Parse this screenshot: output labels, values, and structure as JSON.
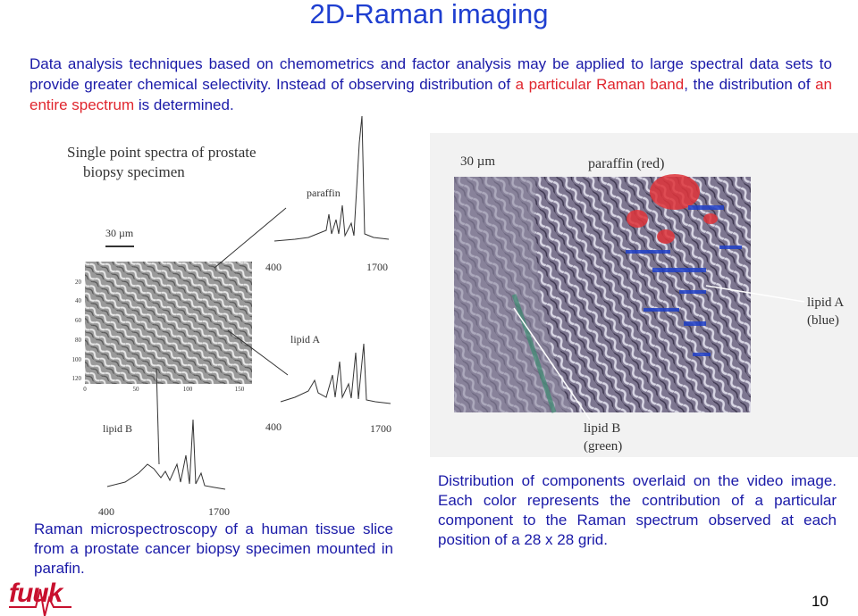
{
  "title": "2D-Raman imaging",
  "intro": {
    "parts": [
      "Data analysis techniques based on chemometrics and factor analysis may be applied to large spectral data sets to provide greater chemical selectivity. Instead of observing distribution of ",
      "a particular Raman band",
      ", the distribution of ",
      "an entire spectrum",
      " is determined."
    ]
  },
  "left_figure": {
    "heading": [
      "Single point spectra of prostate",
      "biopsy specimen"
    ],
    "scale_bar": "30 µm",
    "y_axis": [
      "20",
      "40",
      "60",
      "80",
      "100",
      "120"
    ],
    "x_axis": [
      "0",
      "50",
      "100",
      "150"
    ],
    "spectra": [
      {
        "label": "paraffin",
        "start": "400",
        "end": "1700"
      },
      {
        "label": "lipid A",
        "start": "400",
        "end": "1700"
      },
      {
        "label": "lipid B",
        "start": "400",
        "end": "1700"
      }
    ]
  },
  "right_figure": {
    "scale_bar": "30 µm",
    "labels": [
      [
        "paraffin (red)"
      ],
      [
        "lipid A",
        "(blue)"
      ],
      [
        "lipid B",
        "(green)"
      ]
    ]
  },
  "left_caption": "Raman microspectroscopy of a human tissue slice from a prostate cancer biopsy specimen mounted in parafin.",
  "right_caption": "Distribution of components overlaid on the video image. Each color represents the contribution of a particular component to the Raman spectrum observed at each position of a 28 x 28 grid.",
  "footer": {
    "logo": "fuuk",
    "page_number": "10"
  }
}
